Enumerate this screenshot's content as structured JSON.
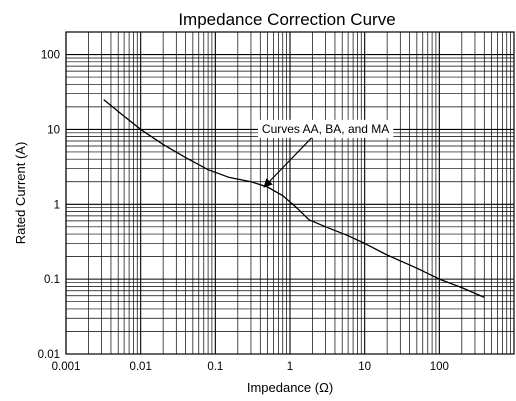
{
  "chart_data": {
    "type": "line",
    "title": "Impedance Correction Curve",
    "xlabel": "Impedance (Ω)",
    "ylabel": "Rated Current (A)",
    "xscale": "log",
    "yscale": "log",
    "xlim": [
      0.001,
      1000
    ],
    "ylim": [
      0.01,
      200
    ],
    "grid": true,
    "x_ticks": [
      {
        "value": 0.001,
        "label": "0.001"
      },
      {
        "value": 0.01,
        "label": "0.01"
      },
      {
        "value": 0.1,
        "label": "0.1"
      },
      {
        "value": 1,
        "label": "1"
      },
      {
        "value": 10,
        "label": "10"
      },
      {
        "value": 100,
        "label": "100"
      }
    ],
    "y_ticks": [
      {
        "value": 0.01,
        "label": "0.01"
      },
      {
        "value": 0.1,
        "label": "0.1"
      },
      {
        "value": 1,
        "label": "1"
      },
      {
        "value": 10,
        "label": "10"
      },
      {
        "value": 100,
        "label": "100"
      }
    ],
    "series": [
      {
        "name": "Curves AA, BA, and MA",
        "color": "#000000",
        "x": [
          0.0032,
          0.006,
          0.01,
          0.02,
          0.04,
          0.08,
          0.15,
          0.3,
          0.5,
          0.8,
          1.2,
          1.8,
          3,
          6,
          10,
          20,
          50,
          100,
          200,
          400
        ],
        "y": [
          25,
          15,
          10,
          6.3,
          4.2,
          2.9,
          2.3,
          2.0,
          1.7,
          1.3,
          0.92,
          0.62,
          0.5,
          0.38,
          0.3,
          0.21,
          0.14,
          0.1,
          0.077,
          0.057
        ]
      }
    ],
    "annotations": [
      {
        "text": "Curves AA, BA, and MA",
        "points_to": {
          "x": 0.45,
          "y": 1.7
        },
        "text_at": {
          "x": 3,
          "y": 9
        }
      }
    ]
  }
}
